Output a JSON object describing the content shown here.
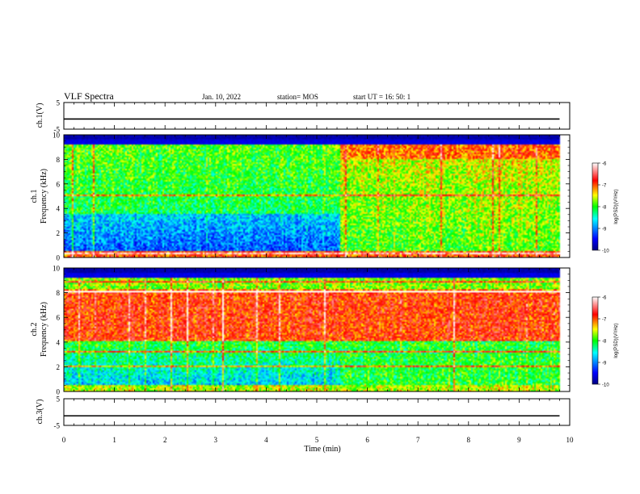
{
  "header": {
    "title": "VLF Spectra",
    "date": "Jan. 10, 2022",
    "station": "station= MOS",
    "start": "start  UT =  16: 50: 1"
  },
  "axes": {
    "xlabel": "Time  (min)",
    "ch1_wave_label": "ch.1(V)",
    "ch3_wave_label": "ch.3(V)",
    "spec1_label_top": "ch.1",
    "spec2_label_top": "ch.2",
    "spec_label": "Frequency  (kHz)",
    "colorbar_label": "log(PSD)(V²/Hz)"
  },
  "chart_data": [
    {
      "type": "line",
      "name": "ch.1(V) waveform",
      "ylabel": "ch.1(V)",
      "ylim": [
        -5,
        5
      ],
      "yticks": [
        "5",
        "-5"
      ],
      "xlim": [
        0,
        10
      ],
      "x": [
        0,
        9.8
      ],
      "series": [
        {
          "values": [
            -1.2,
            -1.2
          ]
        }
      ]
    },
    {
      "type": "heatmap",
      "title": "ch.1",
      "ylabel": "Frequency  (kHz)",
      "ylim": [
        0,
        10
      ],
      "yticks": [
        "0",
        "2",
        "4",
        "6",
        "8",
        "10"
      ],
      "xlim": [
        0,
        10
      ],
      "data_end_min": 9.8,
      "regime_change_min": 5.45,
      "colorbar": {
        "label": "log(PSD)(V²/Hz)",
        "range": [
          -10,
          -6
        ],
        "ticks": [
          "-6",
          "-7",
          "-8",
          "-9",
          "-10"
        ]
      }
    },
    {
      "type": "heatmap",
      "title": "ch.2",
      "ylabel": "Frequency  (kHz)",
      "ylim": [
        0,
        10
      ],
      "yticks": [
        "0",
        "2",
        "4",
        "6",
        "8",
        "10"
      ],
      "xlim": [
        0,
        10
      ],
      "data_end_min": 9.8,
      "regime_change_min": 5.45,
      "colorbar": {
        "label": "log(PSD)(V²/Hz)",
        "range": [
          -10,
          -6
        ],
        "ticks": [
          "-6",
          "-7",
          "-8",
          "-9",
          "-10"
        ]
      }
    },
    {
      "type": "line",
      "name": "ch.3(V) waveform",
      "ylabel": "ch.3(V)",
      "ylim": [
        -5,
        5
      ],
      "yticks": [
        "5",
        "-5"
      ],
      "xlim": [
        0,
        10
      ],
      "x": [
        0,
        9.8
      ],
      "series": [
        {
          "values": [
            -1.4,
            -1.4
          ]
        }
      ]
    }
  ],
  "xaxis": {
    "range": [
      0,
      10
    ],
    "ticks": [
      "0",
      "1",
      "2",
      "3",
      "4",
      "5",
      "6",
      "7",
      "8",
      "9",
      "10"
    ]
  }
}
